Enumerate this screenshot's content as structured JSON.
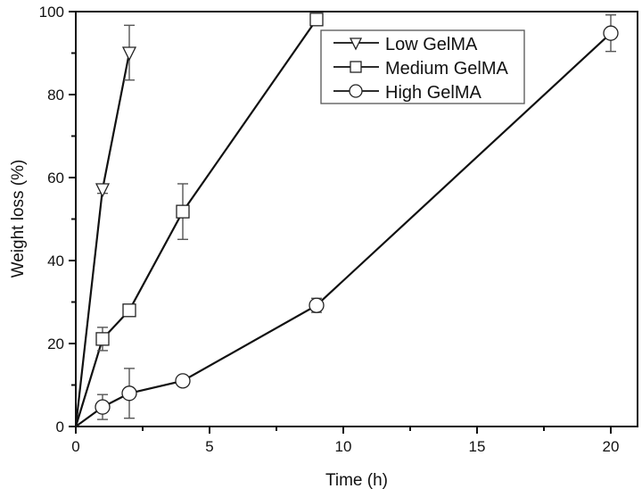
{
  "chart_data": {
    "type": "line",
    "title": "",
    "xlabel": "Time (h)",
    "ylabel": "Weight loss (%)",
    "xlim": [
      0,
      21
    ],
    "ylim": [
      0,
      100
    ],
    "xticks": [
      0,
      5,
      10,
      15,
      20
    ],
    "yticks": [
      0,
      20,
      40,
      60,
      80,
      100
    ],
    "grid": false,
    "legend_position": "upper-center",
    "series": [
      {
        "name": "Low GelMA",
        "marker": "triangle-down",
        "x": [
          0,
          1,
          2
        ],
        "y": [
          0,
          57.2,
          90.1
        ],
        "error": [
          0,
          1.0,
          6.6
        ]
      },
      {
        "name": "Medium GelMA",
        "marker": "square",
        "x": [
          0,
          1,
          2,
          4,
          9
        ],
        "y": [
          0,
          21.1,
          28.0,
          51.8,
          98.1
        ],
        "error": [
          0,
          2.8,
          1.2,
          6.7,
          0.8
        ]
      },
      {
        "name": "High GelMA",
        "marker": "circle",
        "x": [
          0,
          1,
          2,
          4,
          9,
          20
        ],
        "y": [
          0,
          4.7,
          8.0,
          11.0,
          29.2,
          94.8
        ],
        "error": [
          0,
          3.0,
          6.0,
          0.8,
          1.7,
          4.4
        ]
      }
    ]
  },
  "legend": {
    "items": [
      "Low GelMA",
      "Medium GelMA",
      "High GelMA"
    ]
  },
  "axes": {
    "xlabel": "Time (h)",
    "ylabel": "Weight loss (%)"
  }
}
